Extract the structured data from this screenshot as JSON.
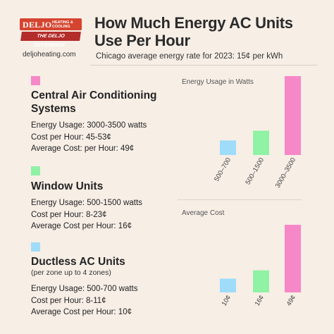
{
  "brand": {
    "name": "DELJO",
    "sub": "HEATING & COOLING",
    "tagline": "THE DELJO DIFFERENCE",
    "website": "deljoheating.com"
  },
  "header": {
    "title": "How Much Energy AC Units Use Per Hour",
    "subtitle": "Chicago average energy rate for 2023: 15¢ per kWh"
  },
  "sections": [
    {
      "name": "Central Air Conditioning Systems",
      "note": "",
      "color": "#f688c8",
      "details": [
        "Energy Usage: 3000-3500 watts",
        "Cost per Hour: 45-53¢",
        "Average Cost: per Hour: 49¢"
      ]
    },
    {
      "name": "Window Units",
      "note": "",
      "color": "#8ff2a4",
      "details": [
        "Energy Usage: 500-1500 watts",
        "Cost per Hour: 8-23¢",
        "Average Cost per Hour: 16¢"
      ]
    },
    {
      "name": "Ductless AC Units",
      "note": "(per zone up to 4 zones)",
      "color": "#9fdcf9",
      "details": [
        "Energy Usage: 500-700 watts",
        "Cost per Hour: 8-11¢",
        "Average Cost per Hour: 10¢"
      ]
    }
  ],
  "chart_data": [
    {
      "type": "bar",
      "title": "Energy Usage in Watts",
      "categories": [
        "500–700",
        "500–1500",
        "3000–3500"
      ],
      "values": [
        600,
        1000,
        3250
      ],
      "colors": [
        "#9fdcf9",
        "#8ff2a4",
        "#f688c8"
      ],
      "ylim": [
        0,
        3250
      ],
      "grid": false
    },
    {
      "type": "bar",
      "title": "Average Cost",
      "categories": [
        "10¢",
        "16¢",
        "49¢"
      ],
      "values": [
        10,
        16,
        49
      ],
      "colors": [
        "#9fdcf9",
        "#8ff2a4",
        "#f688c8"
      ],
      "ylim": [
        0,
        49
      ],
      "grid": false
    }
  ]
}
